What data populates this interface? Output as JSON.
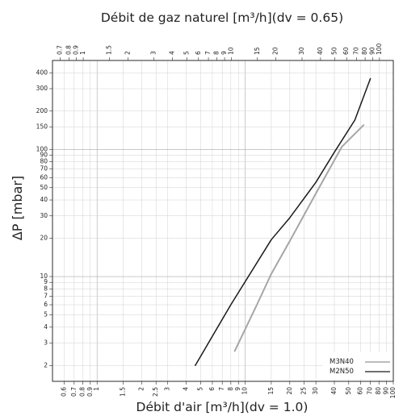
{
  "chart_data": {
    "type": "line",
    "title": "Débit de gaz naturel [m³/h](dv = 0.65)",
    "xlabel": "Débit d'air [m³/h](dv = 1.0)",
    "ylabel": "ΔP [mbar]",
    "x_scale": "log",
    "y_scale": "log",
    "xlim": [
      0.5,
      100
    ],
    "ylim": [
      1.5,
      500
    ],
    "top_xlim": [
      0.62,
      124
    ],
    "grid": true,
    "legend_position": "bottom-right",
    "x_ticks": [
      "0.6",
      "0.7",
      "0.8",
      "0.9",
      "1",
      "1.5",
      "2",
      "2.5",
      "3",
      "4",
      "5",
      "6",
      "7",
      "8",
      "9",
      "10",
      "15",
      "20",
      "25",
      "30",
      "40",
      "50",
      "60",
      "70",
      "80",
      "90",
      "100"
    ],
    "top_x_ticks": [
      "0.7",
      "0.8",
      "0.9",
      "1",
      "1.5",
      "2",
      "3",
      "4",
      "5",
      "6",
      "7",
      "8",
      "9",
      "10",
      "15",
      "20",
      "30",
      "40",
      "50",
      "60",
      "70",
      "80",
      "90",
      "100"
    ],
    "y_ticks": [
      "2",
      "3",
      "4",
      "5",
      "6",
      "7",
      "8",
      "9",
      "10",
      "20",
      "30",
      "40",
      "50",
      "60",
      "70",
      "80",
      "90",
      "100",
      "150",
      "200",
      "300",
      "400"
    ],
    "series": [
      {
        "name": "M3N40",
        "color": "#a6a6a6",
        "x": [
          8.5,
          12,
          15,
          20,
          30,
          45,
          63
        ],
        "y": [
          2.6,
          6.0,
          10.5,
          19.0,
          45.0,
          105.0,
          155.0
        ]
      },
      {
        "name": "M2N50",
        "color": "#1a1a1a",
        "x": [
          4.6,
          8,
          15,
          20,
          30,
          40,
          55,
          70
        ],
        "y": [
          2.0,
          6.0,
          19.5,
          29.0,
          55.0,
          95.0,
          170.0,
          360.0
        ]
      }
    ]
  }
}
